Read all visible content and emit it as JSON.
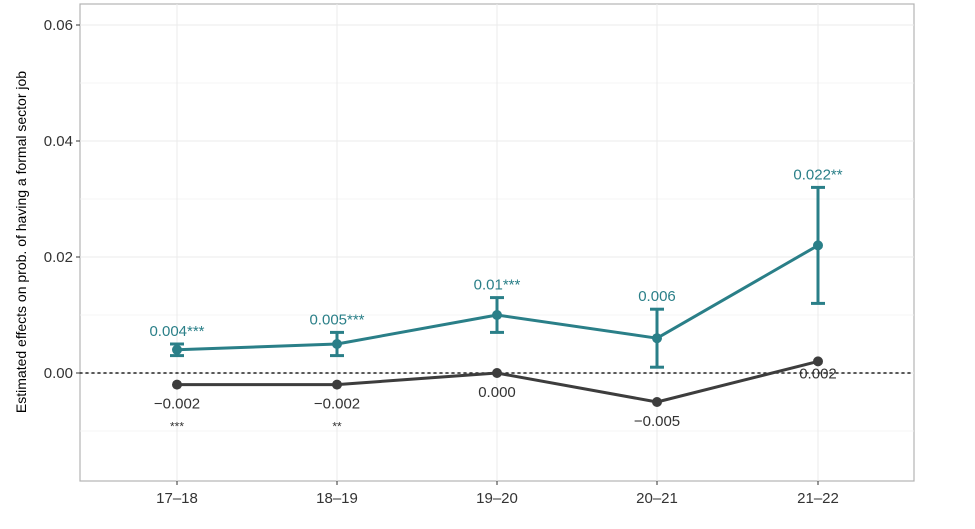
{
  "chart_data": {
    "type": "line",
    "title": "",
    "xlabel": "",
    "ylabel": "Estimated effects on prob. of having a formal sector job",
    "categories": [
      "17–18",
      "18–19",
      "19–20",
      "20–21",
      "21–22"
    ],
    "ylim": [
      -0.018,
      0.062
    ],
    "yticks": [
      0.0,
      0.02,
      0.04,
      0.06
    ],
    "ytick_labels": [
      "0.00",
      "0.02",
      "0.04",
      "0.06"
    ],
    "grid": true,
    "reference_line": {
      "y": 0,
      "style": "dotted"
    },
    "series": [
      {
        "color": "#2a7f88",
        "values": [
          0.004,
          0.005,
          0.01,
          0.006,
          0.022
        ],
        "ci_low": [
          0.003,
          0.003,
          0.007,
          0.001,
          0.012
        ],
        "ci_high": [
          0.005,
          0.007,
          0.013,
          0.011,
          0.032
        ],
        "labels": [
          "0.004***",
          "0.005***",
          "0.01***",
          "0.006",
          "0.022**"
        ]
      },
      {
        "color": "#3d3d3d",
        "values": [
          -0.002,
          -0.002,
          0.0,
          -0.005,
          0.002
        ],
        "labels": [
          "−0.002",
          "−0.002",
          "0.000",
          "−0.005",
          "0.002"
        ],
        "sig": [
          "***",
          "**",
          "",
          "",
          ""
        ]
      }
    ]
  }
}
